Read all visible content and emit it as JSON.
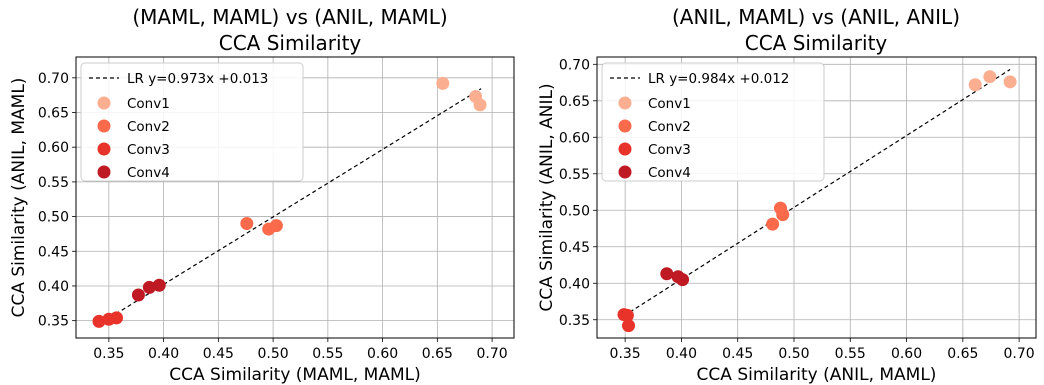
{
  "colors": {
    "Conv1": "#fcae91",
    "Conv2": "#fb6a4a",
    "Conv3": "#e8332a",
    "Conv4": "#bf1a24",
    "fit_line": "#000000",
    "grid": "#b0b0b0"
  },
  "chart_data": [
    {
      "type": "scatter",
      "title_line1": "(MAML, MAML) vs (ANIL, MAML)",
      "title_line2": "CCA Similarity",
      "xlabel": "CCA Similarity (MAML, MAML)",
      "ylabel": "CCA Similarity (ANIL, MAML)",
      "xlim": [
        0.32,
        0.72
      ],
      "ylim": [
        0.325,
        0.73
      ],
      "xticks": [
        "0.35",
        "0.40",
        "0.45",
        "0.50",
        "0.55",
        "0.60",
        "0.65",
        "0.70"
      ],
      "yticks": [
        "0.35",
        "0.40",
        "0.45",
        "0.50",
        "0.55",
        "0.60",
        "0.65",
        "0.70"
      ],
      "grid": true,
      "legend_position": "top-left",
      "fit": {
        "label": "LR y=0.973x +0.013",
        "slope": 0.973,
        "intercept": 0.013,
        "x_range": [
          0.34,
          0.69
        ]
      },
      "series": [
        {
          "name": "Conv1",
          "x": [
            0.655,
            0.685,
            0.689
          ],
          "y": [
            0.692,
            0.673,
            0.661
          ]
        },
        {
          "name": "Conv2",
          "x": [
            0.476,
            0.496,
            0.503
          ],
          "y": [
            0.49,
            0.482,
            0.487
          ]
        },
        {
          "name": "Conv3",
          "x": [
            0.341,
            0.35,
            0.357
          ],
          "y": [
            0.349,
            0.352,
            0.354
          ]
        },
        {
          "name": "Conv4",
          "x": [
            0.377,
            0.387,
            0.396
          ],
          "y": [
            0.387,
            0.398,
            0.401
          ]
        }
      ]
    },
    {
      "type": "scatter",
      "title_line1": "(ANIL, MAML) vs (ANIL, ANIL)",
      "title_line2": "CCA Similarity",
      "xlabel": "CCA Similarity (ANIL, MAML)",
      "ylabel": "CCA Similarity (ANIL, ANIL)",
      "xlim": [
        0.325,
        0.715
      ],
      "ylim": [
        0.325,
        0.71
      ],
      "xticks": [
        "0.35",
        "0.40",
        "0.45",
        "0.50",
        "0.55",
        "0.60",
        "0.65",
        "0.70"
      ],
      "yticks": [
        "0.35",
        "0.40",
        "0.45",
        "0.50",
        "0.55",
        "0.60",
        "0.65",
        "0.70"
      ],
      "grid": true,
      "legend_position": "top-left",
      "fit": {
        "label": "LR y=0.984x +0.012",
        "slope": 0.984,
        "intercept": 0.012,
        "x_range": [
          0.349,
          0.692
        ]
      },
      "series": [
        {
          "name": "Conv1",
          "x": [
            0.661,
            0.674,
            0.692
          ],
          "y": [
            0.672,
            0.683,
            0.676
          ]
        },
        {
          "name": "Conv2",
          "x": [
            0.481,
            0.488,
            0.49
          ],
          "y": [
            0.481,
            0.503,
            0.494
          ]
        },
        {
          "name": "Conv3",
          "x": [
            0.349,
            0.352,
            0.353
          ],
          "y": [
            0.357,
            0.356,
            0.342
          ]
        },
        {
          "name": "Conv4",
          "x": [
            0.387,
            0.397,
            0.401
          ],
          "y": [
            0.413,
            0.409,
            0.405
          ]
        }
      ]
    }
  ]
}
